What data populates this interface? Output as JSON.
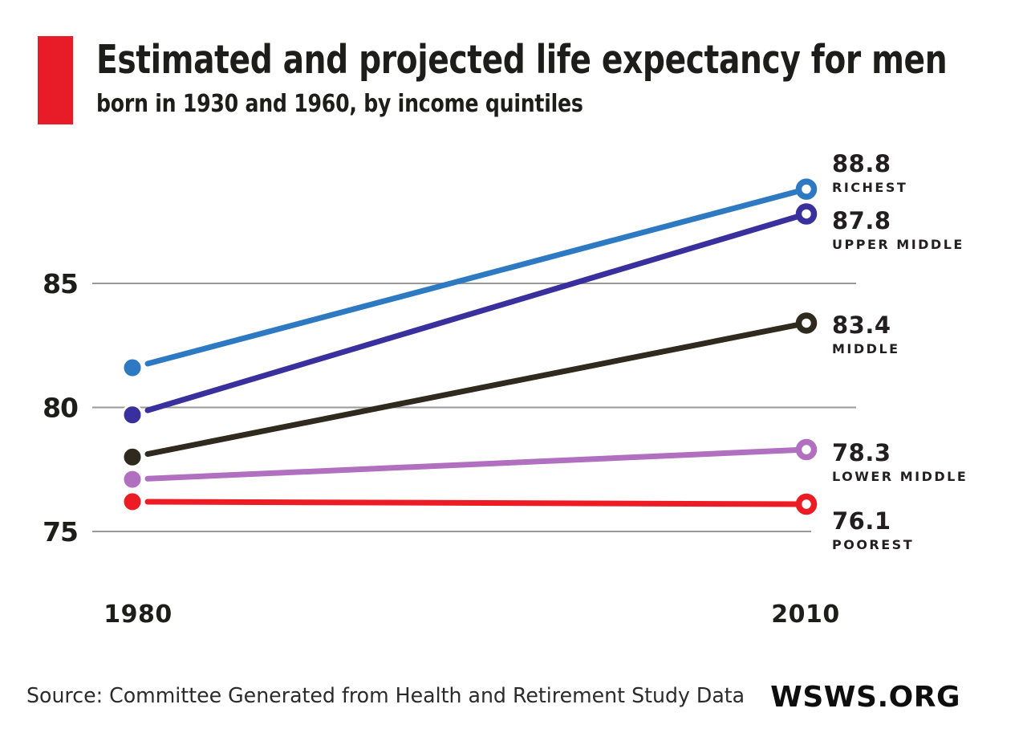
{
  "header": {
    "title": "Estimated and projected life expectancy for men",
    "subtitle": "born in 1930 and 1960, by income quintiles",
    "accent_color": "#e81c29"
  },
  "chart_data": {
    "type": "line",
    "title": "Estimated and projected life expectancy for men",
    "subtitle": "born in 1930 and 1960, by income quintiles",
    "x_categories": [
      "1980",
      "2010"
    ],
    "yticks": [
      85,
      80,
      75
    ],
    "ylim": [
      74.5,
      89.5
    ],
    "grid": true,
    "legend_position": "right-of-endpoints",
    "grid_color": "#999999",
    "series": [
      {
        "name": "RICHEST",
        "color": "#2e7ac2",
        "values": [
          81.6,
          88.8
        ],
        "end_label": "88.8",
        "label_dy": -48
      },
      {
        "name": "UPPER MIDDLE",
        "color": "#39309e",
        "values": [
          79.7,
          87.8
        ],
        "end_label": "87.8",
        "label_dy": -7
      },
      {
        "name": "MIDDLE",
        "color": "#2f2a1d",
        "values": [
          78.0,
          83.4
        ],
        "end_label": "83.4",
        "label_dy": -13
      },
      {
        "name": "LOWER MIDDLE",
        "color": "#b170bf",
        "values": [
          77.1,
          78.3
        ],
        "end_label": "78.3",
        "label_dy": -12
      },
      {
        "name": "POOREST",
        "color": "#ed1c24",
        "values": [
          76.2,
          76.1
        ],
        "end_label": "76.1",
        "label_dy": 5
      }
    ]
  },
  "footer": {
    "source": "Source: Committee Generated from Health and Retirement Study Data",
    "logo": "WSWS.ORG"
  }
}
